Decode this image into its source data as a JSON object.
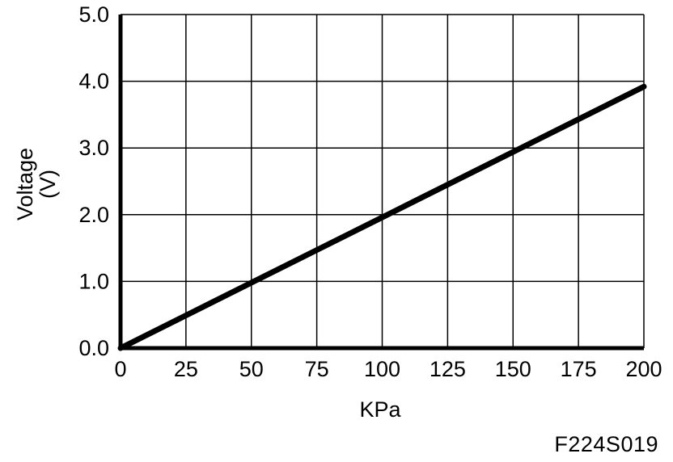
{
  "chart_data": {
    "type": "line",
    "title": "",
    "xlabel": "KPa",
    "ylabel_line1": "Voltage",
    "ylabel_line2": "(V)",
    "xlim": [
      0,
      200
    ],
    "ylim": [
      0,
      5
    ],
    "x_ticks": [
      0,
      25,
      50,
      75,
      100,
      125,
      150,
      175,
      200
    ],
    "x_tick_labels": [
      "0",
      "25",
      "50",
      "75",
      "100",
      "125",
      "150",
      "175",
      "200"
    ],
    "y_ticks": [
      0,
      1,
      2,
      3,
      4,
      5
    ],
    "y_tick_labels": [
      "0.0",
      "1.0",
      "2.0",
      "3.0",
      "4.0",
      "5.0"
    ],
    "grid": true,
    "series": [
      {
        "x": [
          0,
          50,
          100,
          150,
          200
        ],
        "y": [
          0,
          0.98,
          1.96,
          2.94,
          3.92
        ],
        "color": "#000000"
      }
    ]
  },
  "figure_code": "F224S019"
}
